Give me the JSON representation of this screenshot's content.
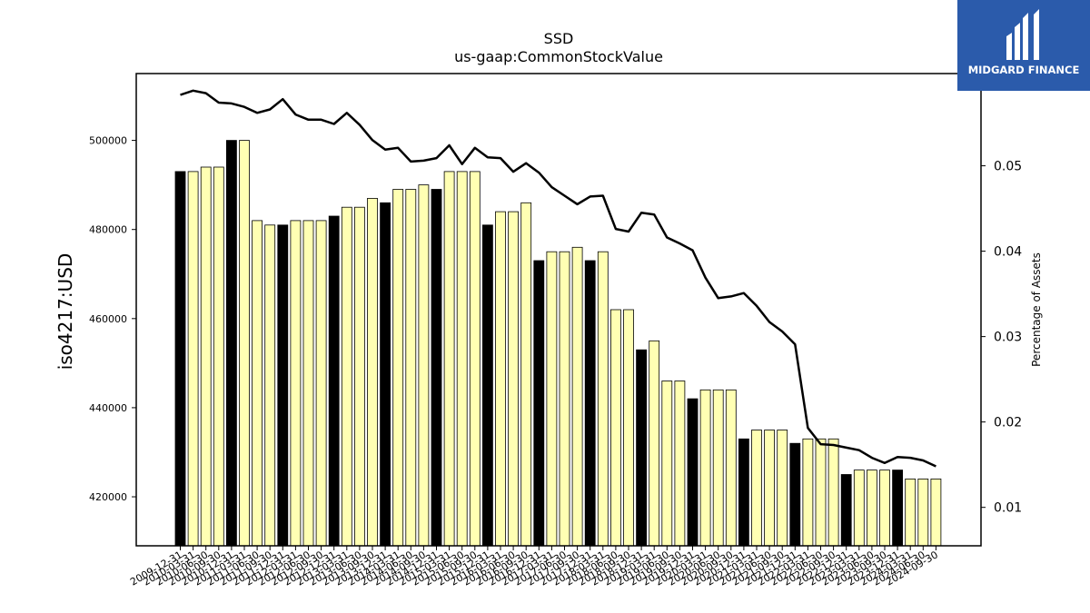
{
  "chart_data": {
    "type": "bar",
    "title": "SSD",
    "subtitle": "us-gaap:CommonStockValue",
    "ylabel": "iso4217:USD",
    "y2label": "Percentage of Assets",
    "ylim": [
      409000,
      515000
    ],
    "y2lim": [
      0.0055,
      0.0608
    ],
    "yticks": [
      420000,
      440000,
      460000,
      480000,
      500000
    ],
    "y2ticks": [
      0.01,
      0.02,
      0.03,
      0.04,
      0.05
    ],
    "categories": [
      "2009-12-31",
      "2010-03-31",
      "2010-06-30",
      "2010-09-30",
      "2010-12-31",
      "2011-03-31",
      "2011-06-30",
      "2011-09-30",
      "2011-12-31",
      "2012-03-31",
      "2012-06-30",
      "2012-09-30",
      "2012-12-31",
      "2013-03-31",
      "2013-06-30",
      "2013-09-30",
      "2013-12-31",
      "2014-03-31",
      "2014-06-30",
      "2014-09-30",
      "2014-12-31",
      "2015-03-31",
      "2015-06-30",
      "2015-09-30",
      "2015-12-31",
      "2016-03-31",
      "2016-06-30",
      "2016-09-30",
      "2016-12-31",
      "2017-03-31",
      "2017-06-30",
      "2017-09-30",
      "2017-12-31",
      "2018-03-31",
      "2018-06-30",
      "2018-09-30",
      "2018-12-31",
      "2019-03-31",
      "2019-06-30",
      "2019-09-30",
      "2019-12-31",
      "2020-03-31",
      "2020-06-30",
      "2020-09-30",
      "2020-12-31",
      "2021-03-31",
      "2021-06-30",
      "2021-09-30",
      "2021-12-31",
      "2022-03-31",
      "2022-06-30",
      "2022-09-30",
      "2022-12-31",
      "2023-03-31",
      "2023-06-30",
      "2023-09-30",
      "2023-12-31",
      "2024-03-31",
      "2024-06-30",
      "2024-09-30"
    ],
    "series": [
      {
        "values": [
          493000,
          493000,
          494000,
          494000,
          500000,
          500000,
          482000,
          481000,
          481000,
          482000,
          482000,
          482000,
          483000,
          485000,
          485000,
          487000,
          486000,
          489000,
          489000,
          490000,
          489000,
          493000,
          493000,
          493000,
          481000,
          484000,
          484000,
          486000,
          473000,
          475000,
          475000,
          476000,
          473000,
          475000,
          462000,
          462000,
          453000,
          455000,
          446000,
          446000,
          442000,
          444000,
          444000,
          444000,
          433000,
          435000,
          435000,
          435000,
          432000,
          433000,
          433000,
          433000,
          425000,
          426000,
          426000,
          426000,
          426000,
          424000,
          424000,
          424000
        ],
        "bar_colors": [
          "#000000",
          "#ffffb3",
          "#ffffb3",
          "#ffffb3",
          "#000000",
          "#ffffb3",
          "#ffffb3",
          "#ffffb3",
          "#000000",
          "#ffffb3",
          "#ffffb3",
          "#ffffb3",
          "#000000",
          "#ffffb3",
          "#ffffb3",
          "#ffffb3",
          "#000000",
          "#ffffb3",
          "#ffffb3",
          "#ffffb3",
          "#000000",
          "#ffffb3",
          "#ffffb3",
          "#ffffb3",
          "#000000",
          "#ffffb3",
          "#ffffb3",
          "#ffffb3",
          "#000000",
          "#ffffb3",
          "#ffffb3",
          "#ffffb3",
          "#000000",
          "#ffffb3",
          "#ffffb3",
          "#ffffb3",
          "#000000",
          "#ffffb3",
          "#ffffb3",
          "#ffffb3",
          "#000000",
          "#ffffb3",
          "#ffffb3",
          "#ffffb3",
          "#000000",
          "#ffffb3",
          "#ffffb3",
          "#ffffb3",
          "#000000",
          "#ffffb3",
          "#ffffb3",
          "#ffffb3",
          "#000000",
          "#ffffb3",
          "#ffffb3",
          "#ffffb3",
          "#000000",
          "#ffffb3",
          "#ffffb3",
          "#ffffb3"
        ]
      },
      {
        "type": "line",
        "axis": "right",
        "color": "#000000",
        "values": [
          0.0583,
          0.0588,
          0.0585,
          0.0574,
          0.0573,
          0.0569,
          0.0562,
          0.0566,
          0.0578,
          0.056,
          0.0554,
          0.0554,
          0.0549,
          0.0562,
          0.0548,
          0.053,
          0.0519,
          0.0521,
          0.0505,
          0.0506,
          0.0509,
          0.0524,
          0.0502,
          0.0521,
          0.051,
          0.0509,
          0.0493,
          0.0503,
          0.0492,
          0.0475,
          0.0465,
          0.0455,
          0.0464,
          0.0465,
          0.0426,
          0.0423,
          0.0445,
          0.0443,
          0.0416,
          0.0409,
          0.0401,
          0.0369,
          0.0345,
          0.0347,
          0.0351,
          0.0336,
          0.0317,
          0.0306,
          0.0291,
          0.0193,
          0.0174,
          0.0173,
          0.017,
          0.0167,
          0.0158,
          0.0152,
          0.0159,
          0.0158,
          0.0155,
          0.0148
        ]
      }
    ],
    "grid": false
  },
  "logo": {
    "text": "MIDGARD FINANCE",
    "bg_color": "#2b5bab"
  }
}
